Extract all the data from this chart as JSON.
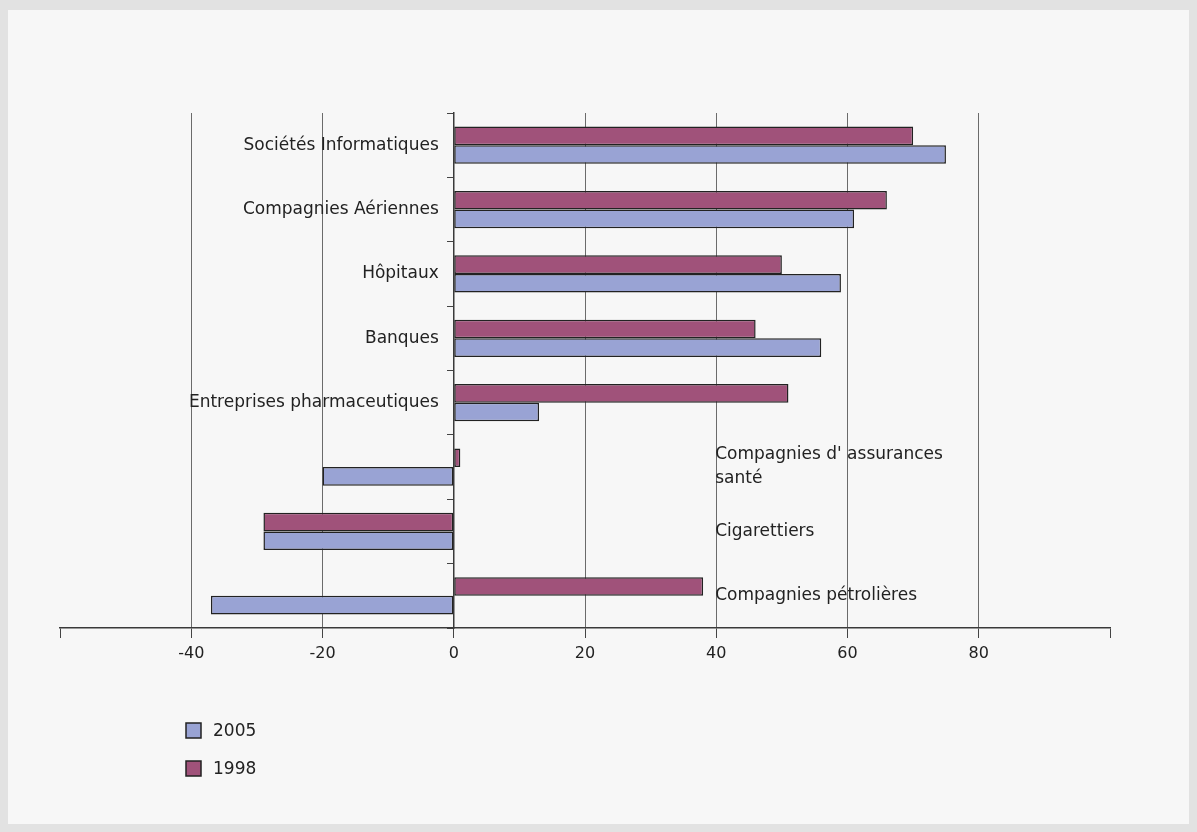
{
  "chart_data": {
    "type": "bar",
    "orientation": "horizontal",
    "categories": [
      "Sociétés Informatiques",
      "Compagnies Aériennes",
      "Hôpitaux",
      "Banques",
      "Entreprises pharmaceutiques",
      "Compagnies d' assurances santé",
      "Cigarettiers",
      "Compagnies pétrolières"
    ],
    "series": [
      {
        "name": "2005",
        "color": "#99a3d4",
        "values": [
          75,
          61,
          59,
          56,
          13,
          -20,
          -29,
          -37
        ]
      },
      {
        "name": "1998",
        "color": "#a0527a",
        "values": [
          70,
          66,
          50,
          46,
          51,
          1,
          -29,
          38
        ]
      }
    ],
    "xlim": [
      -60,
      100
    ],
    "xticks": [
      {
        "value": -60,
        "label": null
      },
      -40,
      -20,
      0,
      20,
      40,
      60,
      80,
      {
        "value": 100,
        "label": null
      }
    ],
    "grid": "x",
    "legend": "bottom left"
  }
}
